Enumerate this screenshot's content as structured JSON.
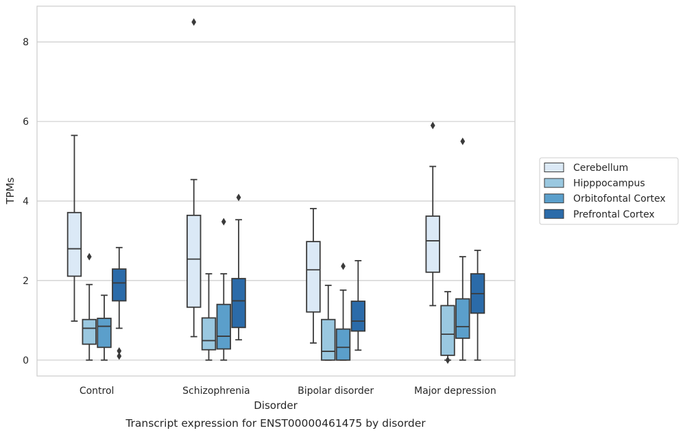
{
  "chart_data": {
    "type": "box",
    "xlabel": "Disorder",
    "ylabel": "TPMs",
    "caption": "Transcript expression for ENST00000461475 by disorder",
    "ylim": [
      -0.4,
      8.9
    ],
    "yticks": [
      0,
      2,
      4,
      6,
      8
    ],
    "grid": "horizontal",
    "legend_position": "right",
    "categories": [
      "Control",
      "Schizophrenia",
      "Bipolar disorder",
      "Major depression"
    ],
    "series": [
      {
        "name": "Cerebellum",
        "color": "#dbe9f6",
        "boxes": [
          {
            "whislo": 0.98,
            "q1": 2.11,
            "med": 2.8,
            "q3": 3.71,
            "whishi": 5.65,
            "fliers": []
          },
          {
            "whislo": 0.59,
            "q1": 1.33,
            "med": 2.54,
            "q3": 3.64,
            "whishi": 4.54,
            "fliers": [
              8.5
            ]
          },
          {
            "whislo": 0.43,
            "q1": 1.21,
            "med": 2.27,
            "q3": 2.98,
            "whishi": 3.81,
            "fliers": []
          },
          {
            "whislo": 1.37,
            "q1": 2.21,
            "med": 3.0,
            "q3": 3.62,
            "whishi": 4.87,
            "fliers": [
              5.9
            ]
          }
        ]
      },
      {
        "name": "Hipppocampus",
        "color": "#9ac8e0",
        "boxes": [
          {
            "whislo": 0.0,
            "q1": 0.4,
            "med": 0.8,
            "q3": 1.02,
            "whishi": 1.9,
            "fliers": [
              2.6
            ]
          },
          {
            "whislo": 0.0,
            "q1": 0.26,
            "med": 0.49,
            "q3": 1.06,
            "whishi": 2.17,
            "fliers": []
          },
          {
            "whislo": 0.0,
            "q1": 0.0,
            "med": 0.22,
            "q3": 1.02,
            "whishi": 1.88,
            "fliers": []
          },
          {
            "whislo": 0.0,
            "q1": 0.12,
            "med": 0.65,
            "q3": 1.37,
            "whishi": 1.72,
            "fliers": [
              0.0
            ]
          }
        ]
      },
      {
        "name": "Orbitofontal Cortex",
        "color": "#5b9fcb",
        "boxes": [
          {
            "whislo": 0.0,
            "q1": 0.32,
            "med": 0.85,
            "q3": 1.05,
            "whishi": 1.63,
            "fliers": []
          },
          {
            "whislo": 0.0,
            "q1": 0.28,
            "med": 0.6,
            "q3": 1.4,
            "whishi": 2.17,
            "fliers": [
              3.48
            ]
          },
          {
            "whislo": 0.0,
            "q1": 0.0,
            "med": 0.32,
            "q3": 0.78,
            "whishi": 1.76,
            "fliers": [
              2.36
            ]
          },
          {
            "whislo": 0.0,
            "q1": 0.55,
            "med": 0.84,
            "q3": 1.54,
            "whishi": 2.6,
            "fliers": [
              5.5
            ]
          }
        ]
      },
      {
        "name": "Prefrontal Cortex",
        "color": "#2b6ba9",
        "boxes": [
          {
            "whislo": 0.8,
            "q1": 1.49,
            "med": 1.94,
            "q3": 2.29,
            "whishi": 2.83,
            "fliers": [
              0.23,
              0.1
            ]
          },
          {
            "whislo": 0.51,
            "q1": 0.82,
            "med": 1.49,
            "q3": 2.05,
            "whishi": 3.53,
            "fliers": [
              4.09
            ]
          },
          {
            "whislo": 0.25,
            "q1": 0.73,
            "med": 0.98,
            "q3": 1.48,
            "whishi": 2.5,
            "fliers": []
          },
          {
            "whislo": 0.0,
            "q1": 1.18,
            "med": 1.67,
            "q3": 2.17,
            "whishi": 2.76,
            "fliers": []
          }
        ]
      }
    ]
  }
}
